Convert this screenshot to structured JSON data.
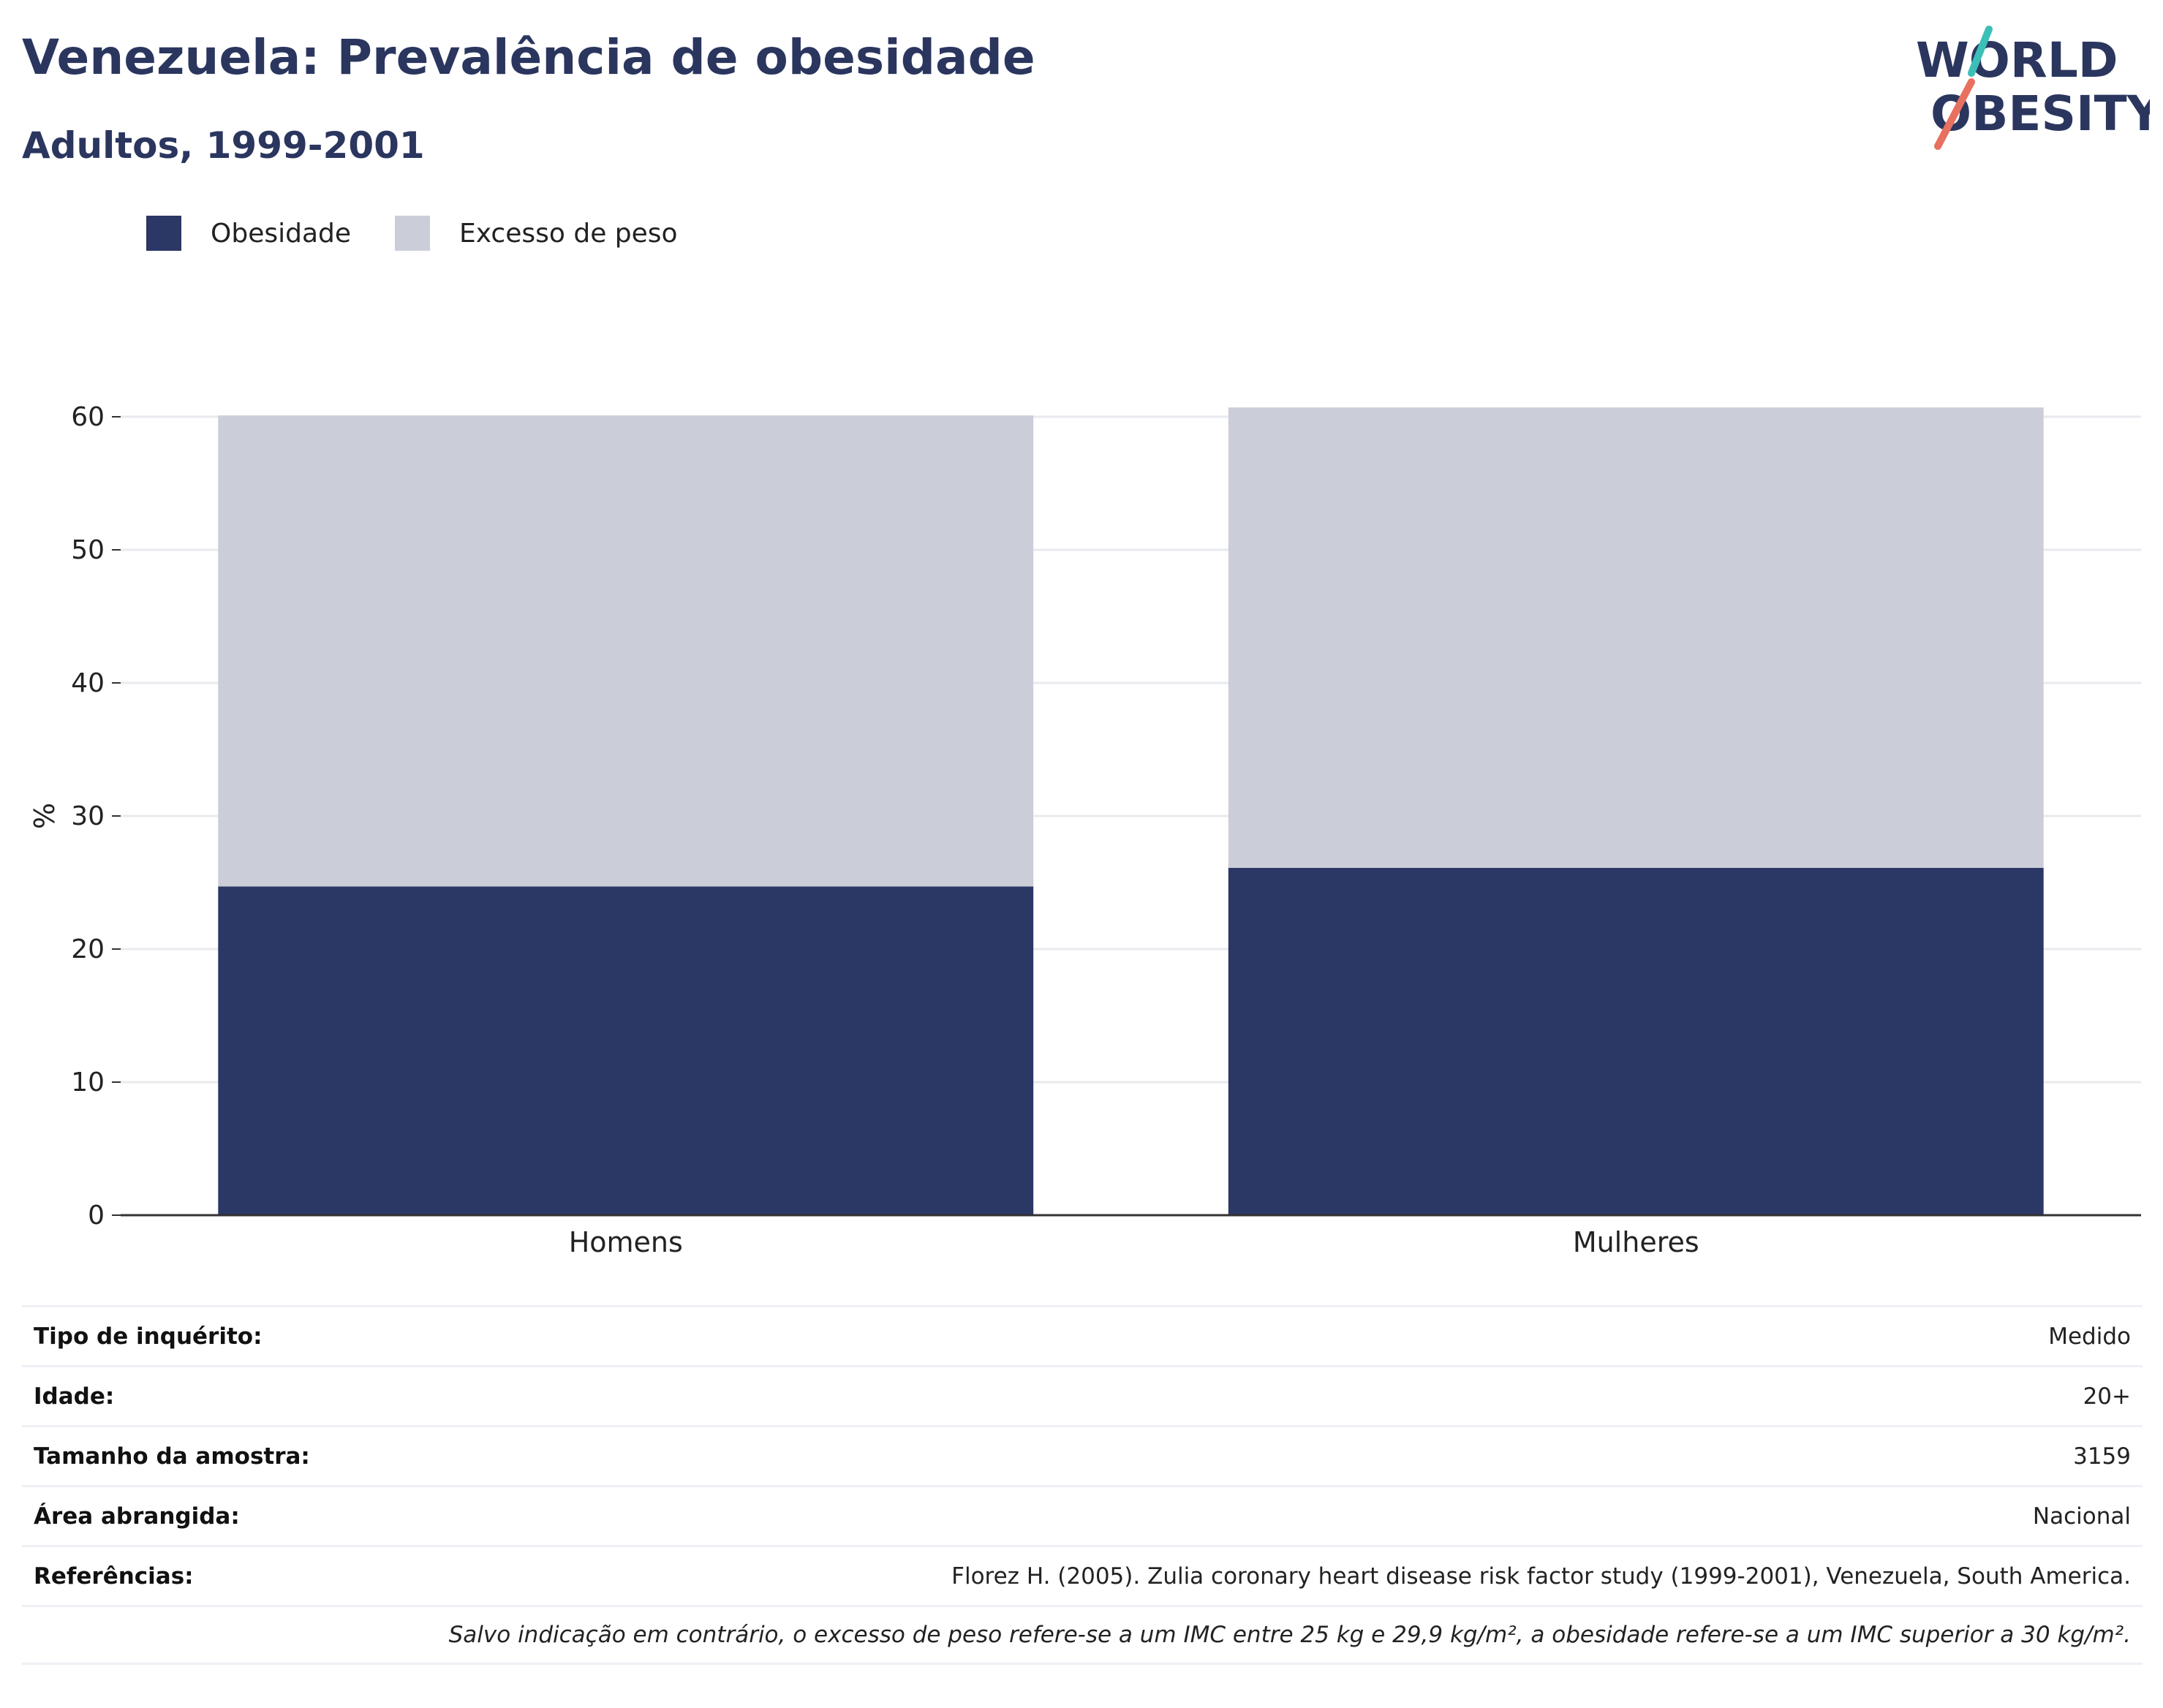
{
  "header": {
    "title": "Venezuela: Prevalência de obesidade",
    "subtitle": "Adultos, 1999-2001",
    "logo_line1": "WORLD",
    "logo_line2": "OBESITY"
  },
  "legend": [
    {
      "label": "Obesidade",
      "color": "#2b3764"
    },
    {
      "label": "Excesso de peso",
      "color": "#cbcdd8"
    }
  ],
  "chart_data": {
    "type": "bar",
    "stacked": true,
    "categories": [
      "Homens",
      "Mulheres"
    ],
    "series": [
      {
        "name": "Obesidade",
        "values": [
          24.7,
          26.1
        ],
        "color": "#2b3764"
      },
      {
        "name": "Excesso de peso",
        "values": [
          35.4,
          34.6
        ],
        "color": "#cbcdd8"
      }
    ],
    "ylabel": "%",
    "ylim": [
      0,
      60
    ],
    "yticks": [
      0,
      10,
      20,
      30,
      40,
      50,
      60
    ],
    "grid": true,
    "legend_position": "top-left"
  },
  "info": [
    {
      "label": "Tipo de inquérito:",
      "value": "Medido"
    },
    {
      "label": "Idade:",
      "value": "20+"
    },
    {
      "label": "Tamanho da amostra:",
      "value": "3159"
    },
    {
      "label": "Área abrangida:",
      "value": "Nacional"
    },
    {
      "label": "Referências:",
      "value": "Florez H. (2005). Zulia coronary heart disease risk factor study (1999-2001), Venezuela, South America."
    }
  ],
  "note": "Salvo indicação em contrário, o excesso de peso refere-se a um IMC entre 25 kg e 29,9 kg/m², a obesidade refere-se a um IMC superior a 30 kg/m²."
}
